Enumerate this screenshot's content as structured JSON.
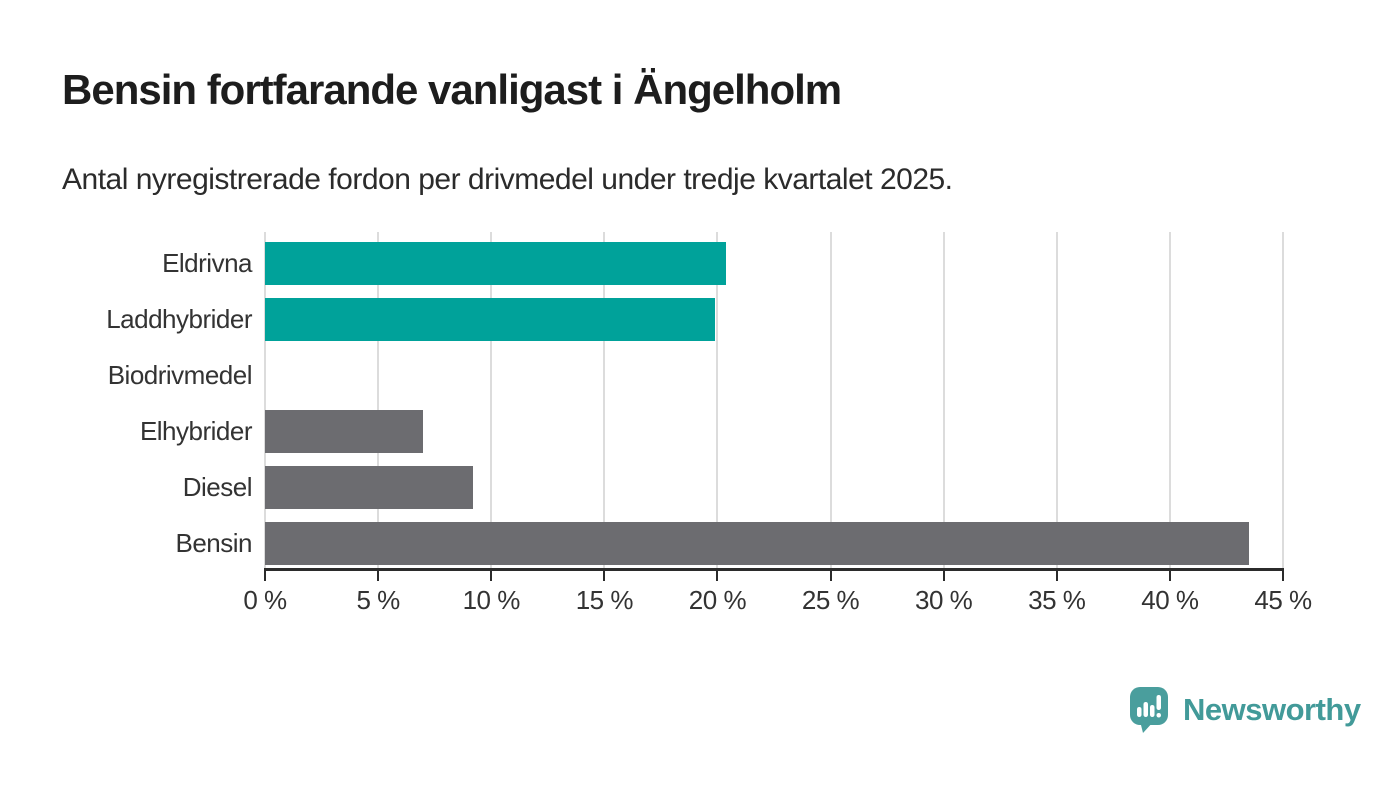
{
  "header": {
    "title": "Bensin fortfarande vanligast i Ängelholm",
    "subtitle": "Antal nyregistrerade fordon per drivmedel under tredje kvartalet 2025."
  },
  "brand": {
    "name": "Newsworthy",
    "color": "#429a99",
    "icon": "newsworthy-speech-bubble-chart-icon",
    "icon_color": "#4a9e9d"
  },
  "colors": {
    "electric_bar": "#00a29a",
    "other_bar": "#6c6c70",
    "grid": "#dcdcdc",
    "axis": "#2b2b2b",
    "label_text": "#333333",
    "title_text": "#1d1d1d"
  },
  "chart_data": {
    "type": "bar",
    "orientation": "horizontal",
    "title": "Bensin fortfarande vanligast i Ängelholm",
    "subtitle": "Antal nyregistrerade fordon per drivmedel under tredje kvartalet 2025.",
    "categories": [
      "Eldrivna",
      "Laddhybrider",
      "Biodrivmedel",
      "Elhybrider",
      "Diesel",
      "Bensin"
    ],
    "values": [
      20.4,
      19.9,
      0,
      7.0,
      9.2,
      43.5
    ],
    "unit": "%",
    "bar_colors": [
      "#00a29a",
      "#00a29a",
      "#6c6c70",
      "#6c6c70",
      "#6c6c70",
      "#6c6c70"
    ],
    "xlim": [
      0,
      45
    ],
    "x_ticks": [
      0,
      5,
      10,
      15,
      20,
      25,
      30,
      35,
      40,
      45
    ],
    "x_tick_labels": [
      "0 %",
      "5 %",
      "10 %",
      "15 %",
      "20 %",
      "25 %",
      "30 %",
      "35 %",
      "40 %",
      "45 %"
    ],
    "grid": true,
    "legend": false,
    "xlabel": "",
    "ylabel": ""
  }
}
